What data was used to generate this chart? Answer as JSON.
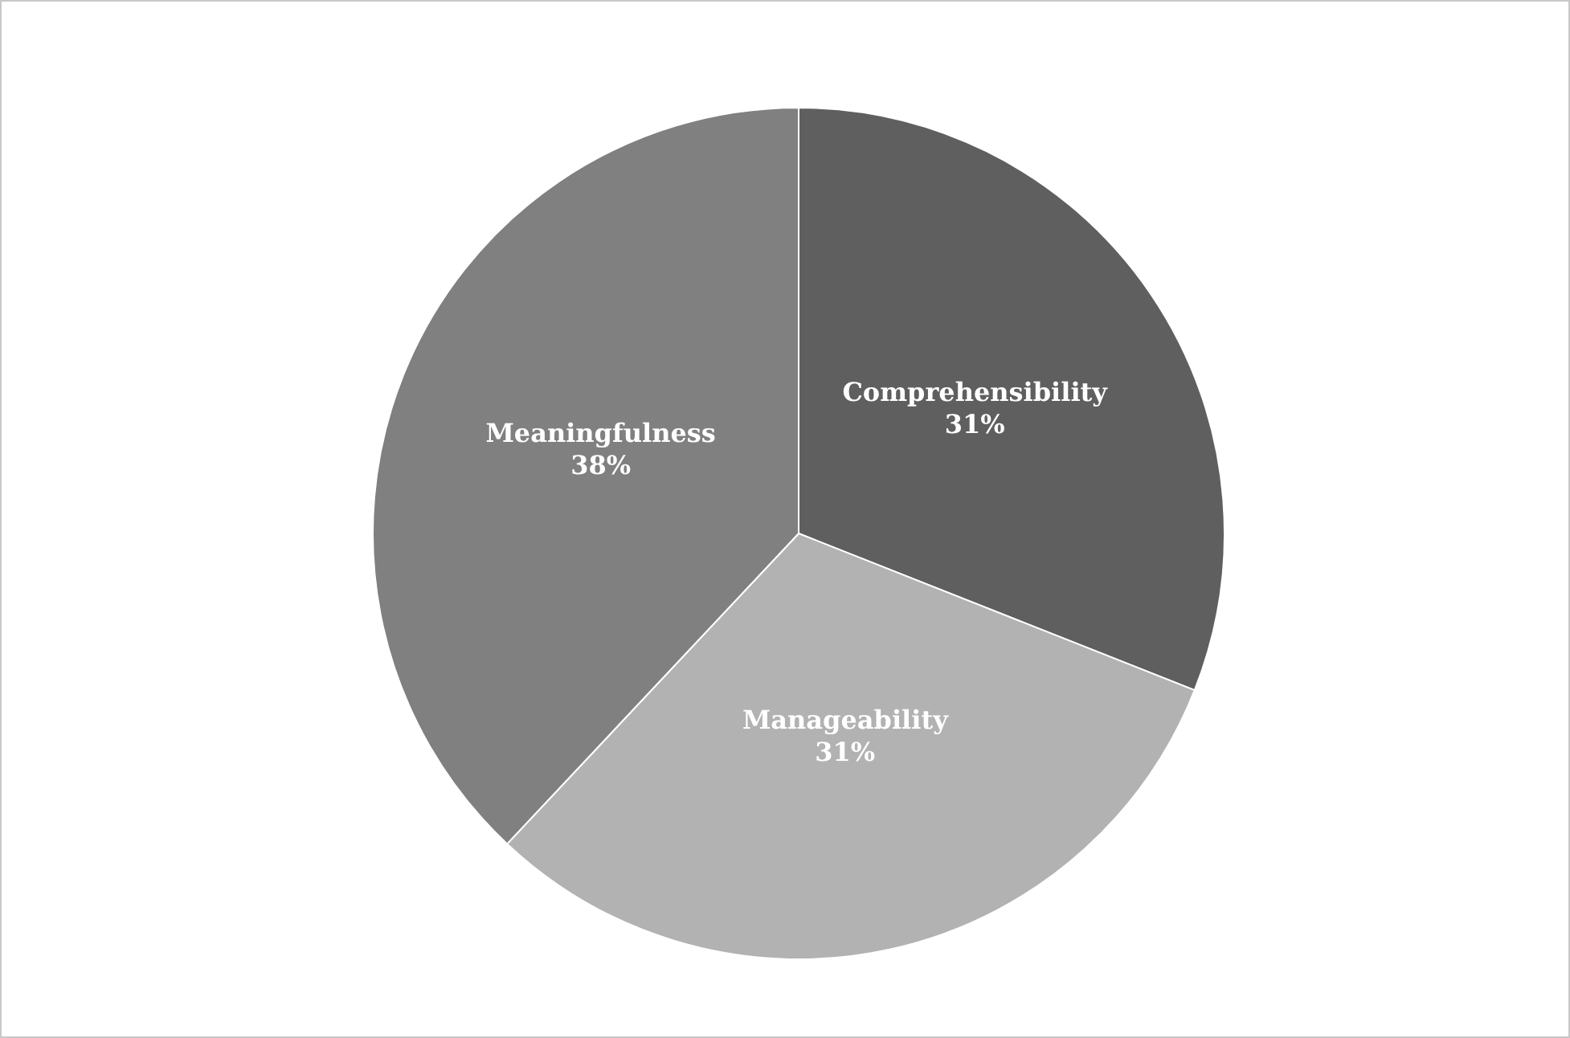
{
  "chart_data": {
    "type": "pie",
    "categories": [
      "Comprehensibility",
      "Manageability",
      "Meaningfulness"
    ],
    "values": [
      31,
      31,
      38
    ],
    "colors": [
      "#5f5f5f",
      "#b2b2b2",
      "#808080"
    ],
    "value_labels": [
      "31%",
      "31%",
      "38%"
    ]
  }
}
